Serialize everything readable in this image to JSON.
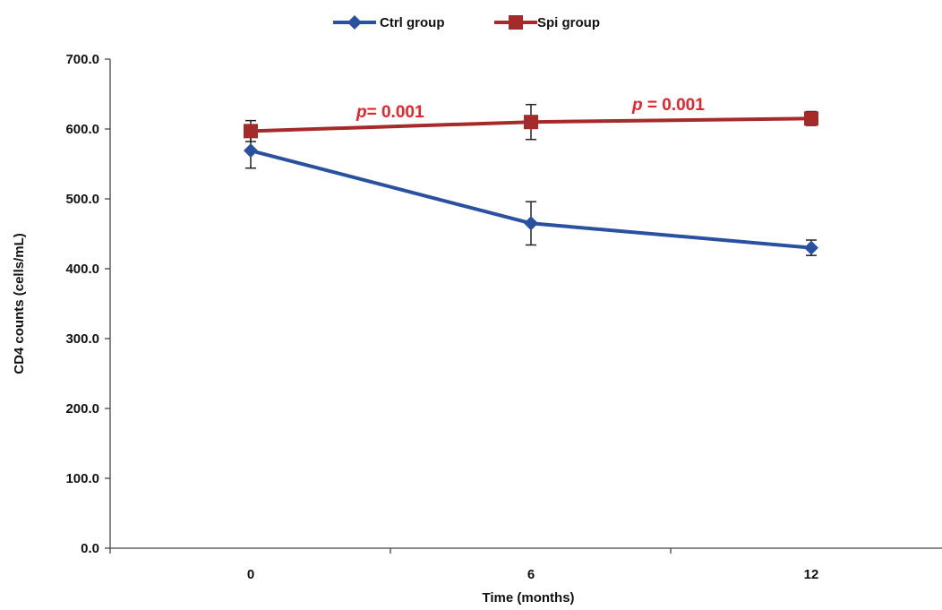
{
  "chart_data": {
    "type": "line",
    "title": "",
    "xlabel": "Time (months)",
    "ylabel": "CD4 counts (cells/mL)",
    "categories": [
      "0",
      "6",
      "12"
    ],
    "ylim": [
      0,
      700
    ],
    "yticks": [
      "0.0",
      "100.0",
      "200.0",
      "300.0",
      "400.0",
      "500.0",
      "600.0",
      "700.0"
    ],
    "grid": false,
    "legend_position": "top-center",
    "series": [
      {
        "name": "Ctrl group",
        "color": "#2a50a0",
        "marker": "diamond",
        "values": [
          569,
          465,
          430
        ],
        "errors": [
          25,
          31,
          11
        ]
      },
      {
        "name": "Spi group",
        "color": "#a52a2a",
        "marker": "square",
        "values": [
          597,
          610,
          615
        ],
        "errors": [
          15,
          25,
          10
        ]
      }
    ],
    "annotations": [
      {
        "p_label": "p",
        "text": "= 0.001",
        "color": "#e8232a",
        "between": [
          "0",
          "6"
        ]
      },
      {
        "p_label": "p",
        "text": " = 0.001",
        "color": "#e8232a",
        "between": [
          "6",
          "12"
        ]
      }
    ]
  }
}
